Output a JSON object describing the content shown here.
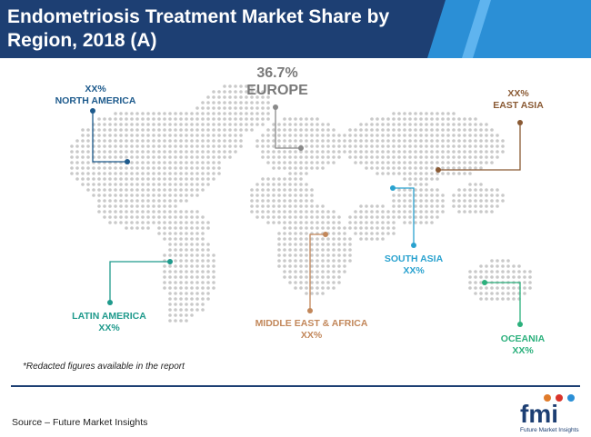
{
  "header": {
    "title": "Endometriosis Treatment Market Share by Region, 2018 (A)",
    "colors": {
      "primary": "#1d3f73",
      "accent": "#2b8fd6"
    }
  },
  "regions": [
    {
      "name": "NORTH AMERICA",
      "value": "XX%",
      "color": "#1d5a8c"
    },
    {
      "name": "EUROPE",
      "value": "36.7%",
      "color": "#8a8a8a"
    },
    {
      "name": "EAST ASIA",
      "value": "XX%",
      "color": "#8a5a34"
    },
    {
      "name": "SOUTH ASIA",
      "value": "XX%",
      "color": "#2aa2cf"
    },
    {
      "name": "LATIN AMERICA",
      "value": "XX%",
      "color": "#1f9a8c"
    },
    {
      "name": "MIDDLE EAST & AFRICA",
      "value": "XX%",
      "color": "#c2875a"
    },
    {
      "name": "OCEANIA",
      "value": "XX%",
      "color": "#2bb07c"
    }
  ],
  "footnote": "*Redacted figures available in the report",
  "source": "Source – Future Market Insights",
  "logo": {
    "text": "fmi",
    "tagline": "Future Market Insights"
  }
}
